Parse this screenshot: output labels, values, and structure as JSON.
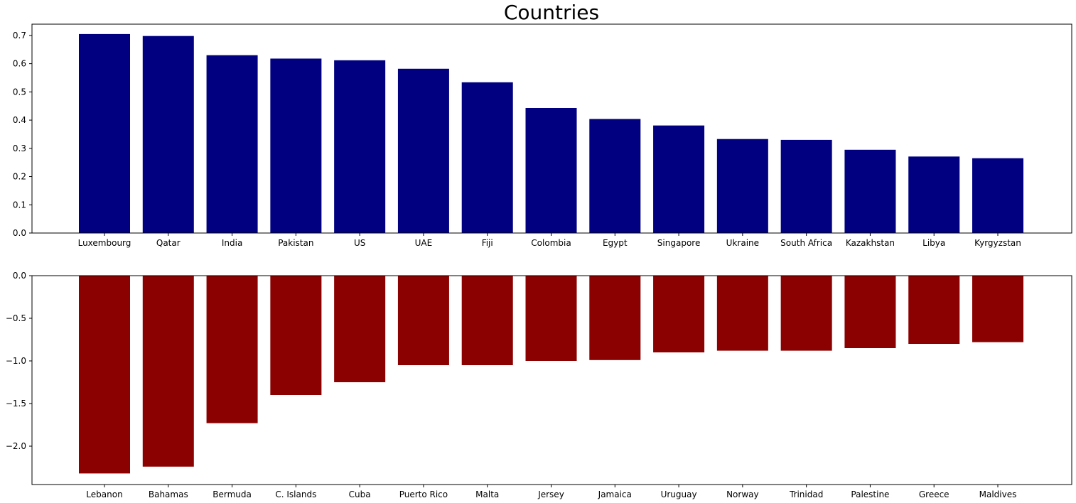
{
  "chart_data": {
    "title": "Countries",
    "subplots": [
      {
        "type": "bar",
        "color": "#000080",
        "categories": [
          "Luxembourg",
          "Qatar",
          "India",
          "Pakistan",
          "US",
          "UAE",
          "Fiji",
          "Colombia",
          "Egypt",
          "Singapore",
          "Ukraine",
          "South Africa",
          "Kazakhstan",
          "Libya",
          "Kyrgyzstan"
        ],
        "values": [
          0.705,
          0.698,
          0.63,
          0.618,
          0.612,
          0.582,
          0.534,
          0.443,
          0.404,
          0.381,
          0.333,
          0.33,
          0.295,
          0.271,
          0.265
        ],
        "ylim": [
          0,
          0.74
        ],
        "yticks": [
          0.0,
          0.1,
          0.2,
          0.3,
          0.4,
          0.5,
          0.6,
          0.7
        ],
        "ytick_labels": [
          "0.0",
          "0.1",
          "0.2",
          "0.3",
          "0.4",
          "0.5",
          "0.6",
          "0.7"
        ]
      },
      {
        "type": "bar",
        "color": "#8b0000",
        "categories": [
          "Lebanon",
          "Bahamas",
          "Bermuda",
          "C. Islands",
          "Cuba",
          "Puerto Rico",
          "Malta",
          "Jersey",
          "Jamaica",
          "Uruguay",
          "Norway",
          "Trinidad",
          "Palestine",
          "Greece",
          "Maldives"
        ],
        "values": [
          -2.32,
          -2.24,
          -1.73,
          -1.4,
          -1.25,
          -1.05,
          -1.05,
          -1.0,
          -0.99,
          -0.9,
          -0.88,
          -0.88,
          -0.85,
          -0.8,
          -0.78
        ],
        "ylim": [
          -2.45,
          0
        ],
        "yticks": [
          0.0,
          -0.5,
          -1.0,
          -1.5,
          -2.0
        ],
        "ytick_labels": [
          "0.0",
          "−0.5",
          "−1.0",
          "−1.5",
          "−2.0"
        ]
      }
    ]
  }
}
